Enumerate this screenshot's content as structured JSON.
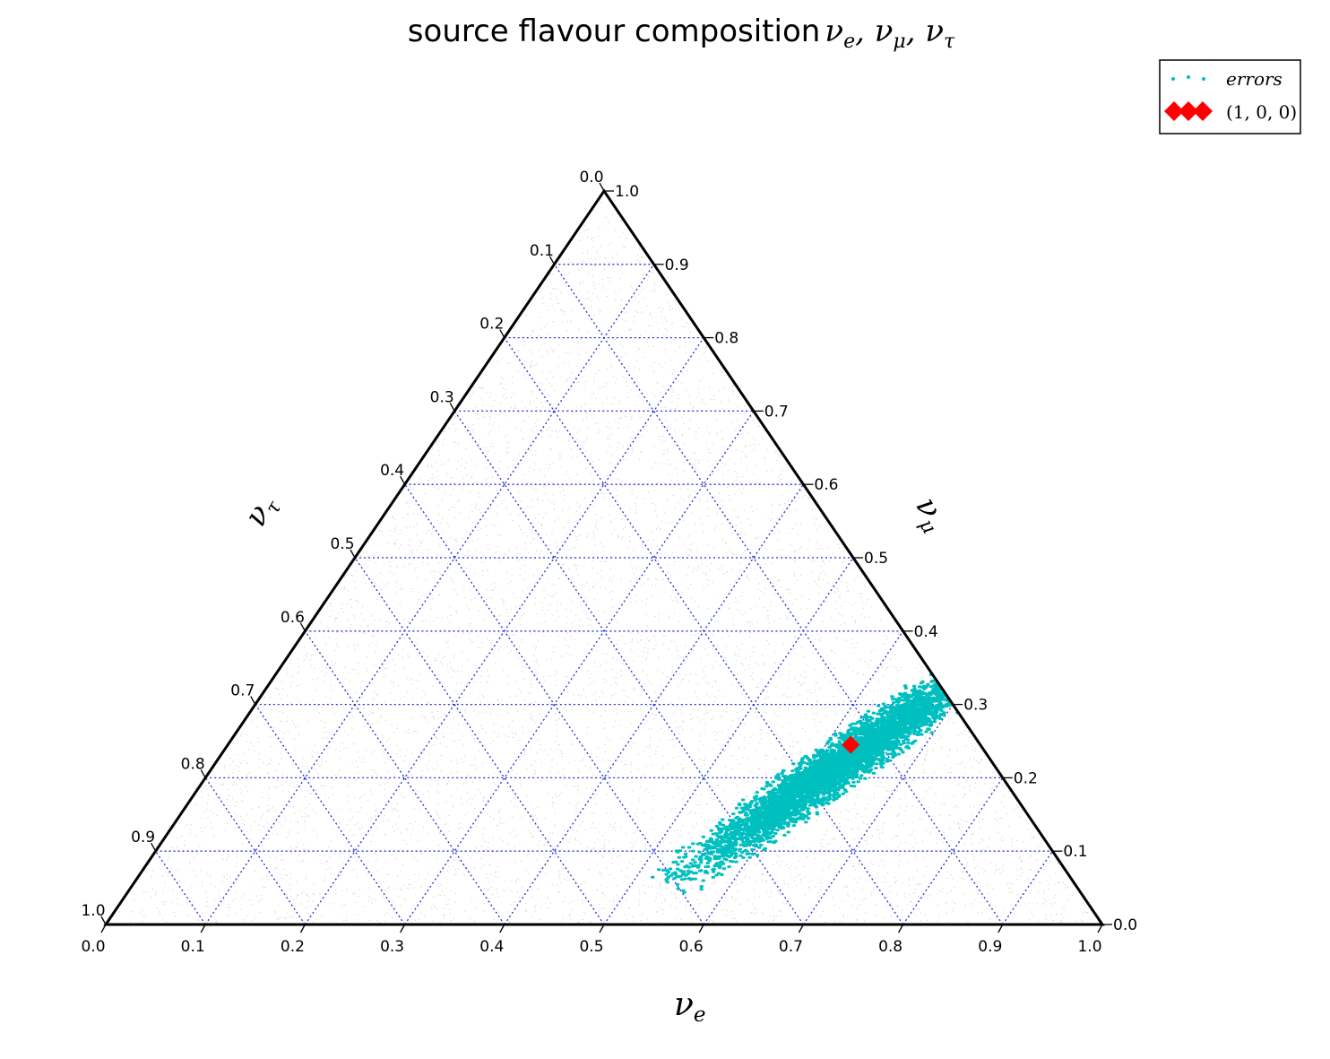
{
  "chart_data": {
    "type": "scatter",
    "title_prefix": "source flavour composition",
    "title_math": {
      "parts": [
        {
          "base": "ν",
          "sub": "e"
        },
        {
          "sep": ", "
        },
        {
          "base": "ν",
          "sub": "μ"
        },
        {
          "sep": ", "
        },
        {
          "base": "ν",
          "sub": "τ"
        }
      ]
    },
    "axes": {
      "bottom": {
        "base": "ν",
        "sub": "e",
        "range": [
          0.0,
          1.0
        ],
        "ticks": [
          "0.0",
          "0.1",
          "0.2",
          "0.3",
          "0.4",
          "0.5",
          "0.6",
          "0.7",
          "0.8",
          "0.9",
          "1.0"
        ]
      },
      "right": {
        "base": "ν",
        "sub": "μ",
        "range": [
          0.0,
          1.0
        ],
        "ticks": [
          "0.0",
          "0.1",
          "0.2",
          "0.3",
          "0.4",
          "0.5",
          "0.6",
          "0.7",
          "0.8",
          "0.9",
          "1.0"
        ]
      },
      "left": {
        "base": "ν",
        "sub": "τ",
        "range": [
          0.0,
          1.0
        ],
        "ticks": [
          "0.0",
          "0.1",
          "0.2",
          "0.3",
          "0.4",
          "0.5",
          "0.6",
          "0.7",
          "0.8",
          "0.9",
          "1.0"
        ]
      }
    },
    "grid": true,
    "grid_color": "#1f2fd0",
    "legend": {
      "placement": "top-right",
      "entries": [
        {
          "label": "errors",
          "marker": "dot",
          "color": "#00bfbf"
        },
        {
          "label": "(1, 0, 0)",
          "marker": "diamond",
          "color": "#ff0000"
        }
      ]
    },
    "series": [
      {
        "name": "errors",
        "marker": "dot",
        "color": "#00bfbf",
        "region": {
          "center": [
            0.625,
            0.215
          ],
          "major_axis_direction": [
            0.045,
            0.085
          ],
          "minor_half_width": 0.022,
          "extent_nu_e": [
            0.6,
            0.72
          ],
          "extent_nu_mu": [
            0.11,
            0.32
          ]
        }
      },
      {
        "name": "(1, 0, 0)",
        "marker": "diamond",
        "color": "#ff0000",
        "points": [
          {
            "nu_e": 0.625,
            "nu_mu": 0.245
          }
        ]
      }
    ]
  }
}
